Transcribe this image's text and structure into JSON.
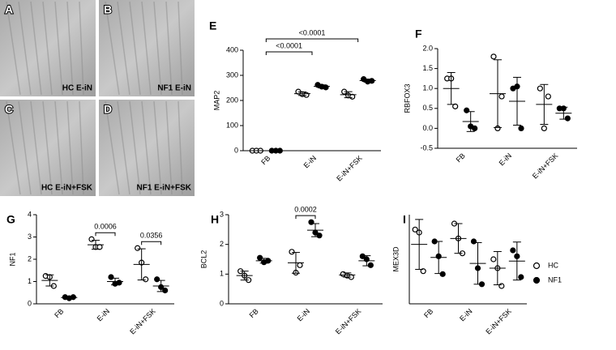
{
  "micrographs": [
    {
      "panel": "A",
      "label": "HC E-iN"
    },
    {
      "panel": "B",
      "label": "NF1 E-iN"
    },
    {
      "panel": "C",
      "label": "HC E-iN+FSK"
    },
    {
      "panel": "D",
      "label": "NF1 E-iN+FSK"
    }
  ],
  "chart_data": [
    {
      "type": "dot",
      "panel": "E",
      "ylabel": "MAP2",
      "categories": [
        "FB",
        "E-iN",
        "E-iN+FSK"
      ],
      "ylim": [
        0,
        400
      ],
      "yticks": [
        0,
        100,
        200,
        300,
        400
      ],
      "series": [
        {
          "name": "HC",
          "color": "#000000",
          "marker": "open",
          "values": [
            [
              0,
              0,
              0
            ],
            [
              235,
              225,
              222
            ],
            [
              235,
              220,
              215
            ]
          ],
          "mean": [
            0,
            227,
            223
          ],
          "sd": [
            0,
            7,
            12
          ]
        },
        {
          "name": "NF1",
          "color": "#000000",
          "marker": "filled",
          "values": [
            [
              0,
              0,
              0
            ],
            [
              262,
              255,
              252
            ],
            [
              285,
              275,
              278
            ]
          ],
          "mean": [
            0,
            256,
            279
          ],
          "sd": [
            0,
            6,
            6
          ]
        }
      ],
      "comparisons": [
        {
          "label": "<0.0001",
          "categories": [
            0,
            1
          ]
        },
        {
          "label": "<0.0001",
          "categories": [
            0,
            2
          ]
        }
      ]
    },
    {
      "type": "dot",
      "panel": "F",
      "ylabel": "RBFOX3",
      "categories": [
        "FB",
        "E-iN",
        "E-iN+FSK"
      ],
      "ylim": [
        -0.5,
        2.0
      ],
      "yticks": [
        -0.5,
        {
          "value": 0,
          "label": "0.0"
        },
        0.5,
        {
          "value": 1,
          "label": "1.0"
        },
        1.5,
        {
          "value": 2,
          "label": "2.0"
        }
      ],
      "series": [
        {
          "name": "HC",
          "color": "#000000",
          "marker": "open",
          "values": [
            [
              1.25,
              1.25,
              0.55
            ],
            [
              1.8,
              0.0,
              0.8
            ],
            [
              1.0,
              0.0,
              0.8
            ]
          ],
          "mean": [
            1.0,
            0.87,
            0.6
          ],
          "sd": [
            0.4,
            0.85,
            0.5
          ]
        },
        {
          "name": "NF1",
          "color": "#000000",
          "marker": "filled",
          "values": [
            [
              0.45,
              0.05,
              0.0
            ],
            [
              1.0,
              1.05,
              0.0
            ],
            [
              0.5,
              0.5,
              0.25
            ]
          ],
          "mean": [
            0.17,
            0.68,
            0.38
          ],
          "sd": [
            0.25,
            0.6,
            0.15
          ]
        }
      ],
      "comparisons": []
    },
    {
      "type": "dot",
      "panel": "G",
      "ylabel": "NF1",
      "categories": [
        "FB",
        "E-iN",
        "E-iN+FSK"
      ],
      "ylim": [
        0,
        4
      ],
      "yticks": [
        0,
        1,
        2,
        3,
        4
      ],
      "series": [
        {
          "name": "HC",
          "color": "#000000",
          "marker": "open",
          "values": [
            [
              1.25,
              1.2,
              0.8
            ],
            [
              2.9,
              2.55,
              2.55
            ],
            [
              2.5,
              1.85,
              1.1
            ]
          ],
          "mean": [
            1.05,
            2.65,
            1.77
          ],
          "sd": [
            0.25,
            0.2,
            0.7
          ]
        },
        {
          "name": "NF1",
          "color": "#000000",
          "marker": "filled",
          "values": [
            [
              0.3,
              0.25,
              0.3
            ],
            [
              1.2,
              0.9,
              0.95
            ],
            [
              1.1,
              0.75,
              0.6
            ]
          ],
          "mean": [
            0.28,
            1.0,
            0.8
          ],
          "sd": [
            0.03,
            0.15,
            0.25
          ]
        }
      ],
      "comparisons": [
        {
          "label": "0.0006",
          "category": 1
        },
        {
          "label": "0.0356",
          "category": 2
        }
      ]
    },
    {
      "type": "dot",
      "panel": "H",
      "ylabel": "BCL2",
      "categories": [
        "FB",
        "E-iN",
        "E-iN+FSK"
      ],
      "ylim": [
        0,
        3
      ],
      "yticks": [
        0,
        1,
        2,
        3
      ],
      "series": [
        {
          "name": "HC",
          "color": "#000000",
          "marker": "open",
          "values": [
            [
              1.1,
              0.95,
              0.8
            ],
            [
              1.75,
              1.05,
              1.3
            ],
            [
              1.0,
              0.95,
              0.9
            ]
          ],
          "mean": [
            0.95,
            1.38,
            0.97
          ],
          "sd": [
            0.15,
            0.35,
            0.07
          ]
        },
        {
          "name": "NF1",
          "color": "#000000",
          "marker": "filled",
          "values": [
            [
              1.55,
              1.4,
              1.45
            ],
            [
              2.75,
              2.4,
              2.3
            ],
            [
              1.6,
              1.5,
              1.3
            ]
          ],
          "mean": [
            1.45,
            2.48,
            1.45
          ],
          "sd": [
            0.08,
            0.22,
            0.17
          ]
        }
      ],
      "comparisons": [
        {
          "label": "0.0002",
          "category": 1
        }
      ]
    },
    {
      "type": "dot",
      "panel": "I",
      "ylabel": "MEX3D",
      "categories": [
        "FB",
        "E-iN",
        "E-iN+FSK"
      ],
      "ylim": [
        0,
        1.5
      ],
      "yticks": [],
      "series": [
        {
          "name": "HC",
          "color": "#000000",
          "marker": "open",
          "values": [
            [
              1.25,
              1.2,
              0.55
            ],
            [
              1.35,
              1.1,
              0.85
            ],
            [
              0.75,
              0.6,
              0.3
            ]
          ],
          "mean": [
            1.0,
            1.1,
            0.6
          ],
          "sd": [
            0.42,
            0.25,
            0.28
          ]
        },
        {
          "name": "NF1",
          "color": "#000000",
          "marker": "filled",
          "values": [
            [
              1.05,
              0.8,
              0.5
            ],
            [
              1.05,
              0.6,
              0.33
            ],
            [
              0.9,
              0.8,
              0.45
            ]
          ],
          "mean": [
            0.78,
            0.68,
            0.72
          ],
          "sd": [
            0.27,
            0.35,
            0.32
          ]
        }
      ],
      "comparisons": [],
      "legend": "right"
    }
  ]
}
